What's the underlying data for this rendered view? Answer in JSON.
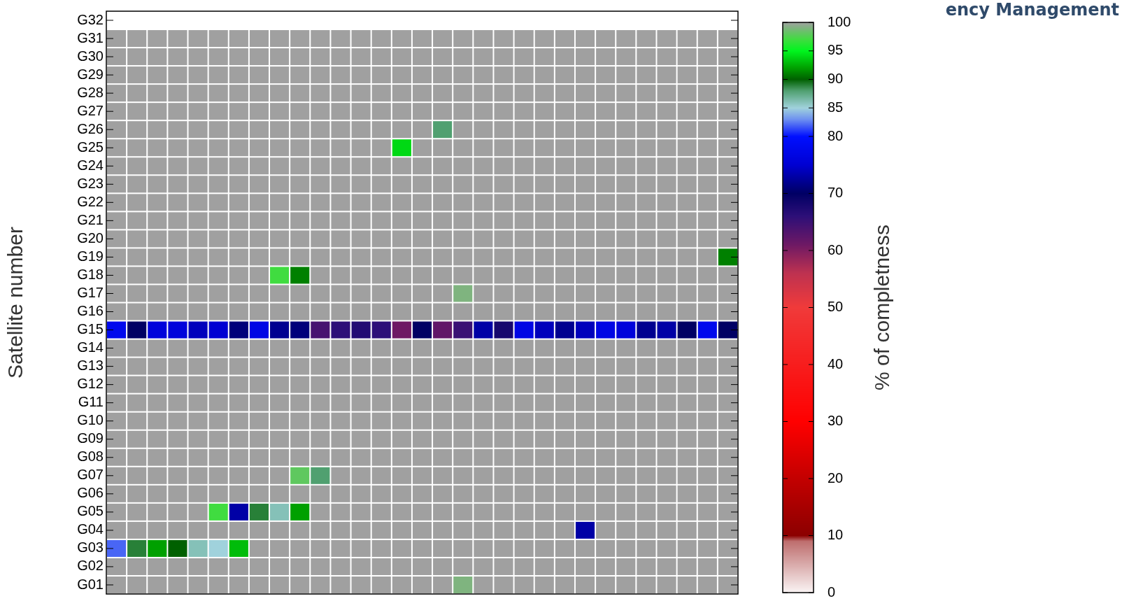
{
  "chart_data": {
    "type": "heatmap",
    "ylabel": "Satellite number",
    "clabel": "% of completness",
    "annotations": [
      "ency Management"
    ],
    "categories": [
      null,
      null,
      null,
      null,
      null,
      null,
      null,
      null,
      null,
      null,
      null,
      null,
      null,
      null,
      null,
      null,
      null,
      null,
      null,
      null,
      null,
      null,
      null,
      null,
      null,
      null,
      null,
      null,
      null,
      null,
      null
    ],
    "y_categories": [
      "G32",
      "G31",
      "G30",
      "G29",
      "G28",
      "G27",
      "G26",
      "G25",
      "G24",
      "G23",
      "G22",
      "G21",
      "G20",
      "G19",
      "G18",
      "G17",
      "G16",
      "G15",
      "G14",
      "G13",
      "G12",
      "G11",
      "G10",
      "G09",
      "G08",
      "G07",
      "G06",
      "G05",
      "G04",
      "G03",
      "G02",
      "G01"
    ],
    "clim": [
      0,
      100
    ],
    "cticks": [
      0,
      10,
      20,
      30,
      40,
      50,
      60,
      70,
      80,
      85,
      90,
      95,
      100
    ],
    "cells": [
      [
        null,
        null,
        null,
        null,
        null,
        null,
        null,
        null,
        null,
        null,
        null,
        null,
        null,
        null,
        null,
        null,
        null,
        null,
        null,
        null,
        null,
        null,
        null,
        null,
        null,
        null,
        null,
        null,
        null,
        null,
        null
      ],
      [
        100,
        100,
        100,
        100,
        100,
        100,
        100,
        100,
        100,
        100,
        100,
        100,
        100,
        100,
        100,
        100,
        100,
        100,
        100,
        100,
        100,
        100,
        100,
        100,
        100,
        100,
        100,
        100,
        100,
        100,
        100
      ],
      [
        100,
        100,
        100,
        100,
        100,
        100,
        100,
        100,
        100,
        100,
        100,
        100,
        100,
        100,
        100,
        100,
        100,
        100,
        100,
        100,
        100,
        100,
        100,
        100,
        100,
        100,
        100,
        100,
        100,
        100,
        100
      ],
      [
        100,
        100,
        100,
        100,
        100,
        100,
        100,
        100,
        100,
        100,
        100,
        100,
        100,
        100,
        100,
        100,
        100,
        100,
        100,
        100,
        100,
        100,
        100,
        100,
        100,
        100,
        100,
        100,
        100,
        100,
        100
      ],
      [
        100,
        100,
        100,
        100,
        100,
        100,
        100,
        100,
        100,
        100,
        100,
        100,
        100,
        100,
        100,
        100,
        100,
        100,
        100,
        100,
        100,
        100,
        100,
        100,
        100,
        100,
        100,
        100,
        100,
        100,
        100
      ],
      [
        100,
        100,
        100,
        100,
        100,
        100,
        100,
        100,
        100,
        100,
        100,
        100,
        100,
        100,
        100,
        100,
        100,
        100,
        100,
        100,
        100,
        100,
        100,
        100,
        100,
        100,
        100,
        100,
        100,
        100,
        100
      ],
      [
        100,
        100,
        100,
        100,
        100,
        100,
        100,
        100,
        100,
        100,
        100,
        100,
        100,
        100,
        100,
        100,
        88,
        100,
        100,
        100,
        100,
        100,
        100,
        100,
        100,
        100,
        100,
        100,
        100,
        100,
        100
      ],
      [
        100,
        100,
        100,
        100,
        100,
        100,
        100,
        100,
        100,
        100,
        100,
        100,
        100,
        100,
        94,
        100,
        100,
        100,
        100,
        100,
        100,
        100,
        100,
        100,
        100,
        100,
        100,
        100,
        100,
        100,
        100
      ],
      [
        100,
        100,
        100,
        100,
        100,
        100,
        100,
        100,
        100,
        100,
        100,
        100,
        100,
        100,
        100,
        100,
        100,
        100,
        100,
        100,
        100,
        100,
        100,
        100,
        100,
        100,
        100,
        100,
        100,
        100,
        100
      ],
      [
        100,
        100,
        100,
        100,
        100,
        100,
        100,
        100,
        100,
        100,
        100,
        100,
        100,
        100,
        100,
        100,
        100,
        100,
        100,
        100,
        100,
        100,
        100,
        100,
        100,
        100,
        100,
        100,
        100,
        100,
        100
      ],
      [
        100,
        100,
        100,
        100,
        100,
        100,
        100,
        100,
        100,
        100,
        100,
        100,
        100,
        100,
        100,
        100,
        100,
        100,
        100,
        100,
        100,
        100,
        100,
        100,
        100,
        100,
        100,
        100,
        100,
        100,
        100
      ],
      [
        100,
        100,
        100,
        100,
        100,
        100,
        100,
        100,
        100,
        100,
        100,
        100,
        100,
        100,
        100,
        100,
        100,
        100,
        100,
        100,
        100,
        100,
        100,
        100,
        100,
        100,
        100,
        100,
        100,
        100,
        100
      ],
      [
        100,
        100,
        100,
        100,
        100,
        100,
        100,
        100,
        100,
        100,
        100,
        100,
        100,
        100,
        100,
        100,
        100,
        100,
        100,
        100,
        100,
        100,
        100,
        100,
        100,
        100,
        100,
        100,
        100,
        100,
        100
      ],
      [
        100,
        100,
        100,
        100,
        100,
        100,
        100,
        100,
        100,
        100,
        100,
        100,
        100,
        100,
        100,
        100,
        100,
        100,
        100,
        100,
        100,
        100,
        100,
        100,
        100,
        100,
        100,
        100,
        100,
        100,
        91
      ],
      [
        100,
        100,
        100,
        100,
        100,
        100,
        100,
        100,
        97,
        91,
        100,
        100,
        100,
        100,
        100,
        100,
        100,
        100,
        100,
        100,
        100,
        100,
        100,
        100,
        100,
        100,
        100,
        100,
        100,
        100,
        100
      ],
      [
        100,
        100,
        100,
        100,
        100,
        100,
        100,
        100,
        100,
        100,
        100,
        100,
        100,
        100,
        100,
        100,
        100,
        99,
        100,
        100,
        100,
        100,
        100,
        100,
        100,
        100,
        100,
        100,
        100,
        100,
        100
      ],
      [
        100,
        100,
        100,
        100,
        100,
        100,
        100,
        100,
        100,
        100,
        100,
        100,
        100,
        100,
        100,
        100,
        100,
        100,
        100,
        100,
        100,
        100,
        100,
        100,
        100,
        100,
        100,
        100,
        100,
        100,
        100
      ],
      [
        78,
        70,
        76,
        76,
        74,
        75,
        71,
        77,
        72,
        71,
        64,
        66,
        67,
        66,
        61,
        70,
        62,
        65,
        73,
        68,
        77,
        74,
        72,
        74,
        77,
        76,
        72,
        73,
        70,
        78,
        70
      ],
      [
        100,
        100,
        100,
        100,
        100,
        100,
        100,
        100,
        100,
        100,
        100,
        100,
        100,
        100,
        100,
        100,
        100,
        100,
        100,
        100,
        100,
        100,
        100,
        100,
        100,
        100,
        100,
        100,
        100,
        100,
        100
      ],
      [
        100,
        100,
        100,
        100,
        100,
        100,
        100,
        100,
        100,
        100,
        100,
        100,
        100,
        100,
        100,
        100,
        100,
        100,
        100,
        100,
        100,
        100,
        100,
        100,
        100,
        100,
        100,
        100,
        100,
        100,
        100
      ],
      [
        100,
        100,
        100,
        100,
        100,
        100,
        100,
        100,
        100,
        100,
        100,
        100,
        100,
        100,
        100,
        100,
        100,
        100,
        100,
        100,
        100,
        100,
        100,
        100,
        100,
        100,
        100,
        100,
        100,
        100,
        100
      ],
      [
        100,
        100,
        100,
        100,
        100,
        100,
        100,
        100,
        100,
        100,
        100,
        100,
        100,
        100,
        100,
        100,
        100,
        100,
        100,
        100,
        100,
        100,
        100,
        100,
        100,
        100,
        100,
        100,
        100,
        100,
        100
      ],
      [
        100,
        100,
        100,
        100,
        100,
        100,
        100,
        100,
        100,
        100,
        100,
        100,
        100,
        100,
        100,
        100,
        100,
        100,
        100,
        100,
        100,
        100,
        100,
        100,
        100,
        100,
        100,
        100,
        100,
        100,
        100
      ],
      [
        100,
        100,
        100,
        100,
        100,
        100,
        100,
        100,
        100,
        100,
        100,
        100,
        100,
        100,
        100,
        100,
        100,
        100,
        100,
        100,
        100,
        100,
        100,
        100,
        100,
        100,
        100,
        100,
        100,
        100,
        100
      ],
      [
        100,
        100,
        100,
        100,
        100,
        100,
        100,
        100,
        100,
        100,
        100,
        100,
        100,
        100,
        100,
        100,
        100,
        100,
        100,
        100,
        100,
        100,
        100,
        100,
        100,
        100,
        100,
        100,
        100,
        100,
        100
      ],
      [
        100,
        100,
        100,
        100,
        100,
        100,
        100,
        100,
        100,
        98,
        88,
        100,
        100,
        100,
        100,
        100,
        100,
        100,
        100,
        100,
        100,
        100,
        100,
        100,
        100,
        100,
        100,
        100,
        100,
        100,
        100
      ],
      [
        100,
        100,
        100,
        100,
        100,
        100,
        100,
        100,
        100,
        100,
        100,
        100,
        100,
        100,
        100,
        100,
        100,
        100,
        100,
        100,
        100,
        100,
        100,
        100,
        100,
        100,
        100,
        100,
        100,
        100,
        100
      ],
      [
        100,
        100,
        100,
        100,
        100,
        97,
        73,
        89,
        86,
        92,
        100,
        100,
        100,
        100,
        100,
        100,
        100,
        100,
        100,
        100,
        100,
        100,
        100,
        100,
        100,
        100,
        100,
        100,
        100,
        100,
        100
      ],
      [
        100,
        100,
        100,
        100,
        100,
        100,
        100,
        100,
        100,
        100,
        100,
        100,
        100,
        100,
        100,
        100,
        100,
        100,
        100,
        100,
        100,
        100,
        100,
        73,
        100,
        100,
        100,
        100,
        100,
        100,
        100
      ],
      [
        82,
        89,
        92,
        90,
        86,
        85,
        93,
        100,
        100,
        100,
        100,
        100,
        100,
        100,
        100,
        100,
        100,
        100,
        100,
        100,
        100,
        100,
        100,
        100,
        100,
        100,
        100,
        100,
        100,
        100,
        100
      ],
      [
        100,
        100,
        100,
        100,
        100,
        100,
        100,
        100,
        100,
        100,
        100,
        100,
        100,
        100,
        100,
        100,
        100,
        100,
        100,
        100,
        100,
        100,
        100,
        100,
        100,
        100,
        100,
        100,
        100,
        100,
        100
      ],
      [
        100,
        100,
        100,
        100,
        100,
        100,
        100,
        100,
        100,
        100,
        100,
        100,
        100,
        100,
        100,
        100,
        100,
        99,
        100,
        100,
        100,
        100,
        100,
        100,
        100,
        100,
        100,
        100,
        100,
        100,
        100
      ]
    ]
  }
}
